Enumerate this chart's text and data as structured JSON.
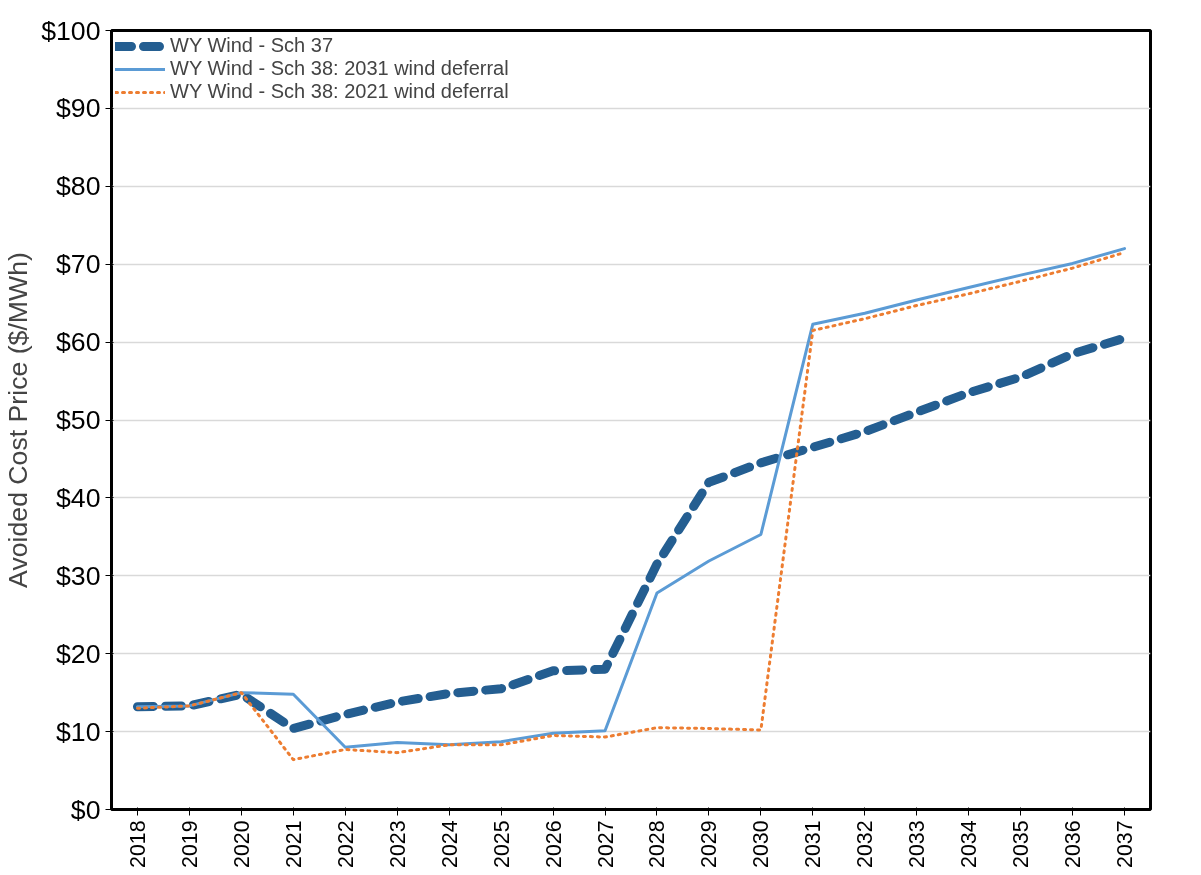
{
  "chart_data": {
    "type": "line",
    "ylabel": "Avoided Cost Price ($/MWh)",
    "categories": [
      "2018",
      "2019",
      "2020",
      "2021",
      "2022",
      "2023",
      "2024",
      "2025",
      "2026",
      "2027",
      "2028",
      "2029",
      "2030",
      "2031",
      "2032",
      "2033",
      "2034",
      "2035",
      "2036",
      "2037"
    ],
    "series": [
      {
        "name": "WY Wind - Sch 37",
        "color": "#245e91",
        "line_style": "dashed",
        "values": [
          13.2,
          13.3,
          14.8,
          10.4,
          12.2,
          13.8,
          14.9,
          15.5,
          17.8,
          18.0,
          31.5,
          42.0,
          44.5,
          46.5,
          48.5,
          51.0,
          53.5,
          55.5,
          58.5,
          60.5
        ]
      },
      {
        "name": "WY Wind - Sch 38: 2031 wind deferral",
        "color": "#5b9bd5",
        "line_style": "solid",
        "values": [
          13.2,
          13.3,
          15.0,
          14.8,
          8.0,
          8.6,
          8.3,
          8.7,
          9.8,
          10.1,
          27.8,
          31.9,
          35.3,
          62.3,
          63.7,
          65.4,
          67.0,
          68.6,
          70.1,
          72.0
        ]
      },
      {
        "name": "WY Wind - Sch 38: 2021 wind deferral",
        "color": "#ed7d31",
        "line_style": "dotted",
        "values": [
          13.0,
          13.3,
          15.0,
          6.4,
          7.7,
          7.3,
          8.3,
          8.3,
          9.5,
          9.3,
          10.5,
          10.4,
          10.2,
          61.5,
          63.0,
          64.7,
          66.2,
          67.8,
          69.5,
          71.5
        ]
      }
    ],
    "ylim": [
      0,
      100
    ],
    "yticks": [
      {
        "value": 0,
        "label": "$0"
      },
      {
        "value": 10,
        "label": "$10"
      },
      {
        "value": 20,
        "label": "$20"
      },
      {
        "value": 30,
        "label": "$30"
      },
      {
        "value": 40,
        "label": "$40"
      },
      {
        "value": 50,
        "label": "$50"
      },
      {
        "value": 60,
        "label": "$60"
      },
      {
        "value": 70,
        "label": "$70"
      },
      {
        "value": 80,
        "label": "$80"
      },
      {
        "value": 90,
        "label": "$90"
      },
      {
        "value": 100,
        "label": "$100"
      }
    ],
    "grid": "y",
    "legend": "top left",
    "marker": "none"
  }
}
